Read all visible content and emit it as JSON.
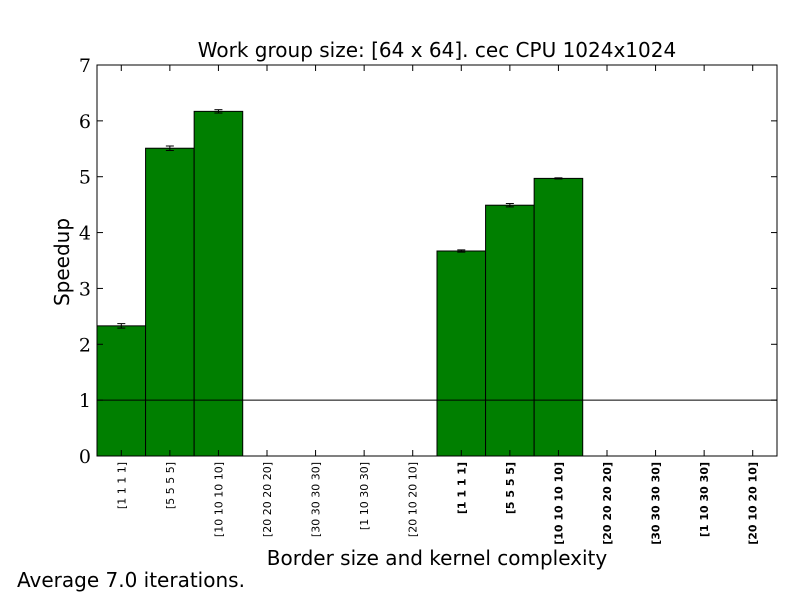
{
  "chart_data": {
    "type": "bar",
    "title": "Work group size: [64 x 64]. cec CPU 1024x1024",
    "xlabel": "Border size and kernel complexity",
    "ylabel": "Speedup",
    "ylim": [
      0,
      7
    ],
    "yticks": [
      0,
      1,
      2,
      3,
      4,
      5,
      6,
      7
    ],
    "categories": [
      "[1 1 1 1]",
      "[5 5 5 5]",
      "[10 10 10 10]",
      "[20 20 20 20]",
      "[30 30 30 30]",
      "[1 10 30 30]",
      "[20 10 20 10]",
      "[1 1 1 1]",
      "[5 5 5 5]",
      "[10 10 10 10]",
      "[20 20 20 20]",
      "[30 30 30 30]",
      "[1 10 30 30]",
      "[20 10 20 10]"
    ],
    "bold_categories_from": 7,
    "values": [
      2.33,
      5.51,
      6.17,
      null,
      null,
      null,
      null,
      3.67,
      4.49,
      4.97,
      null,
      null,
      null,
      null
    ],
    "errors": [
      0.04,
      0.04,
      0.03,
      null,
      null,
      null,
      null,
      0.02,
      0.03,
      0.01,
      null,
      null,
      null,
      null
    ],
    "reference_line": 1,
    "bar_color": "#007f00",
    "grid": false,
    "legend": "none"
  },
  "footnote": "Average 7.0 iterations."
}
